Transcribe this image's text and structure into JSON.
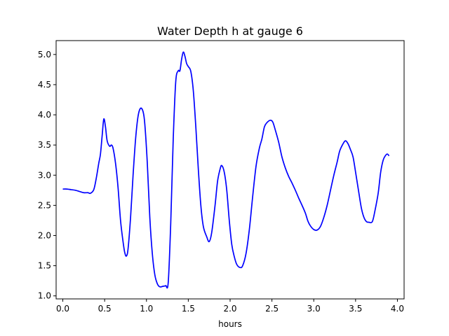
{
  "chart_data": {
    "type": "line",
    "title": "Water Depth h at gauge 6",
    "xlabel": "hours",
    "ylabel": "",
    "xlim": [
      -0.08,
      4.08
    ],
    "ylim": [
      0.95,
      5.23
    ],
    "grid": false,
    "xticks": [
      0.0,
      0.5,
      1.0,
      1.5,
      2.0,
      2.5,
      3.0,
      3.5,
      4.0
    ],
    "xtick_labels": [
      "0.0",
      "0.5",
      "1.0",
      "1.5",
      "2.0",
      "2.5",
      "3.0",
      "3.5",
      "4.0"
    ],
    "yticks": [
      1.0,
      1.5,
      2.0,
      2.5,
      3.0,
      3.5,
      4.0,
      4.5,
      5.0
    ],
    "ytick_labels": [
      "1.0",
      "1.5",
      "2.0",
      "2.5",
      "3.0",
      "3.5",
      "4.0",
      "4.5",
      "5.0"
    ],
    "series": [
      {
        "color": "#0000ff",
        "points": [
          [
            0.0,
            2.77
          ],
          [
            0.05,
            2.77
          ],
          [
            0.1,
            2.76
          ],
          [
            0.15,
            2.75
          ],
          [
            0.2,
            2.73
          ],
          [
            0.25,
            2.71
          ],
          [
            0.3,
            2.71
          ],
          [
            0.33,
            2.7
          ],
          [
            0.37,
            2.76
          ],
          [
            0.4,
            2.95
          ],
          [
            0.43,
            3.2
          ],
          [
            0.45,
            3.35
          ],
          [
            0.47,
            3.65
          ],
          [
            0.49,
            3.93
          ],
          [
            0.51,
            3.8
          ],
          [
            0.53,
            3.57
          ],
          [
            0.56,
            3.48
          ],
          [
            0.58,
            3.5
          ],
          [
            0.6,
            3.45
          ],
          [
            0.63,
            3.2
          ],
          [
            0.66,
            2.8
          ],
          [
            0.69,
            2.25
          ],
          [
            0.72,
            1.9
          ],
          [
            0.74,
            1.72
          ],
          [
            0.76,
            1.66
          ],
          [
            0.78,
            1.78
          ],
          [
            0.81,
            2.3
          ],
          [
            0.84,
            3.0
          ],
          [
            0.87,
            3.6
          ],
          [
            0.9,
            3.98
          ],
          [
            0.93,
            4.11
          ],
          [
            0.96,
            4.05
          ],
          [
            0.98,
            3.85
          ],
          [
            1.01,
            3.2
          ],
          [
            1.04,
            2.3
          ],
          [
            1.07,
            1.7
          ],
          [
            1.1,
            1.35
          ],
          [
            1.13,
            1.2
          ],
          [
            1.16,
            1.15
          ],
          [
            1.2,
            1.16
          ],
          [
            1.23,
            1.17
          ],
          [
            1.26,
            1.22
          ],
          [
            1.29,
            2.2
          ],
          [
            1.32,
            3.6
          ],
          [
            1.35,
            4.55
          ],
          [
            1.38,
            4.73
          ],
          [
            1.4,
            4.73
          ],
          [
            1.42,
            4.92
          ],
          [
            1.44,
            5.04
          ],
          [
            1.46,
            4.97
          ],
          [
            1.48,
            4.85
          ],
          [
            1.5,
            4.8
          ],
          [
            1.53,
            4.72
          ],
          [
            1.56,
            4.4
          ],
          [
            1.59,
            3.8
          ],
          [
            1.62,
            3.1
          ],
          [
            1.65,
            2.5
          ],
          [
            1.68,
            2.15
          ],
          [
            1.72,
            1.98
          ],
          [
            1.75,
            1.9
          ],
          [
            1.78,
            2.05
          ],
          [
            1.82,
            2.5
          ],
          [
            1.85,
            2.9
          ],
          [
            1.88,
            3.1
          ],
          [
            1.9,
            3.16
          ],
          [
            1.93,
            3.05
          ],
          [
            1.96,
            2.75
          ],
          [
            1.99,
            2.25
          ],
          [
            2.02,
            1.85
          ],
          [
            2.05,
            1.65
          ],
          [
            2.08,
            1.52
          ],
          [
            2.12,
            1.47
          ],
          [
            2.15,
            1.5
          ],
          [
            2.19,
            1.7
          ],
          [
            2.23,
            2.1
          ],
          [
            2.27,
            2.65
          ],
          [
            2.31,
            3.15
          ],
          [
            2.35,
            3.45
          ],
          [
            2.38,
            3.6
          ],
          [
            2.41,
            3.8
          ],
          [
            2.44,
            3.87
          ],
          [
            2.48,
            3.91
          ],
          [
            2.51,
            3.88
          ],
          [
            2.54,
            3.75
          ],
          [
            2.58,
            3.55
          ],
          [
            2.62,
            3.3
          ],
          [
            2.66,
            3.12
          ],
          [
            2.7,
            2.98
          ],
          [
            2.74,
            2.87
          ],
          [
            2.78,
            2.75
          ],
          [
            2.82,
            2.62
          ],
          [
            2.86,
            2.5
          ],
          [
            2.9,
            2.37
          ],
          [
            2.93,
            2.24
          ],
          [
            2.96,
            2.16
          ],
          [
            3.0,
            2.1
          ],
          [
            3.04,
            2.09
          ],
          [
            3.08,
            2.15
          ],
          [
            3.12,
            2.3
          ],
          [
            3.16,
            2.5
          ],
          [
            3.2,
            2.75
          ],
          [
            3.24,
            3.0
          ],
          [
            3.28,
            3.22
          ],
          [
            3.31,
            3.4
          ],
          [
            3.35,
            3.52
          ],
          [
            3.38,
            3.57
          ],
          [
            3.41,
            3.52
          ],
          [
            3.44,
            3.42
          ],
          [
            3.47,
            3.3
          ],
          [
            3.5,
            3.05
          ],
          [
            3.54,
            2.7
          ],
          [
            3.57,
            2.45
          ],
          [
            3.6,
            2.3
          ],
          [
            3.63,
            2.23
          ],
          [
            3.66,
            2.22
          ],
          [
            3.7,
            2.23
          ],
          [
            3.73,
            2.4
          ],
          [
            3.77,
            2.7
          ],
          [
            3.8,
            3.05
          ],
          [
            3.83,
            3.25
          ],
          [
            3.86,
            3.33
          ],
          [
            3.88,
            3.35
          ],
          [
            3.9,
            3.32
          ]
        ]
      }
    ]
  }
}
